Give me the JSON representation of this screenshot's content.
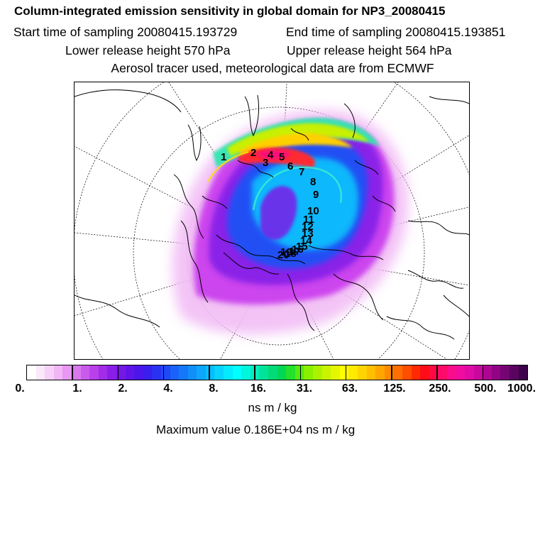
{
  "header": {
    "title": "Column-integrated emission sensitivity in global domain for NP3_20080415",
    "start_label": "Start time of sampling 20080415.193729",
    "end_label": "End time of sampling 20080415.193851",
    "lower_label": "Lower release height  570 hPa",
    "upper_label": "Upper release height  564 hPa",
    "info": "Aerosol tracer used, meteorological data are from ECMWF"
  },
  "map": {
    "release_labels": [
      "1",
      "2",
      "3",
      "4",
      "5",
      "6",
      "7",
      "8",
      "9",
      "10",
      "11",
      "12",
      "13",
      "14",
      "15",
      "16",
      "17",
      "18",
      "19",
      "20"
    ]
  },
  "colorbar": {
    "ticks": [
      "0.",
      "1.",
      "2.",
      "4.",
      "8.",
      "16.",
      "31.",
      "63.",
      "125.",
      "250.",
      "500.",
      "1000."
    ],
    "units": "ns m / kg",
    "colors": [
      "#ffffff",
      "#fbe8fb",
      "#f6d0f8",
      "#f0b6f5",
      "#e897f2",
      "#d978ee",
      "#c95aeb",
      "#b940ea",
      "#a22ce9",
      "#8a1ee8",
      "#7418e8",
      "#6014e8",
      "#4c16ea",
      "#3a1eee",
      "#2a32f2",
      "#1f48f6",
      "#1a62f8",
      "#1478fa",
      "#108ffb",
      "#0ca6fc",
      "#08bdfd",
      "#06d4fd",
      "#04eafe",
      "#00ffff",
      "#00f6dd",
      "#00edbb",
      "#00e499",
      "#00db77",
      "#00d855",
      "#22e02c",
      "#55ea10",
      "#88f000",
      "#aaf200",
      "#c8f400",
      "#e4f600",
      "#ffff00",
      "#ffea00",
      "#ffd400",
      "#ffbe00",
      "#ffa600",
      "#ff8a00",
      "#ff6e00",
      "#ff4e00",
      "#ff2a00",
      "#ff0c1a",
      "#ff0844",
      "#ff0a6a",
      "#fa0c8a",
      "#f00c9e",
      "#e00aa6",
      "#c8089e",
      "#ae0692",
      "#920484",
      "#760474",
      "#5a0460",
      "#3e004a"
    ]
  },
  "footer": {
    "max_value": "Maximum value  0.186E+04 ns m / kg"
  }
}
